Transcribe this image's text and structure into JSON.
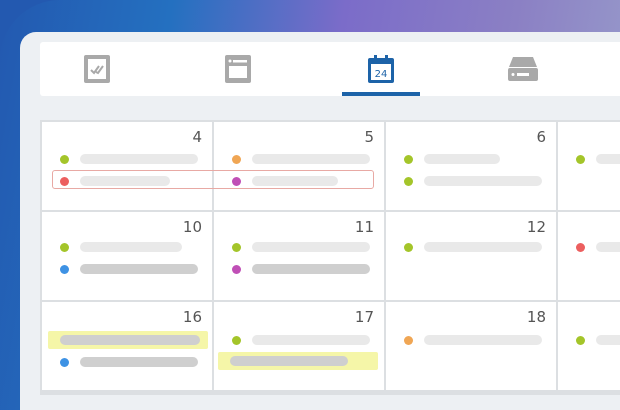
{
  "tabs": [
    {
      "icon": "checklist-icon",
      "active": false
    },
    {
      "icon": "form-icon",
      "active": false
    },
    {
      "icon": "calendar-icon",
      "label": "24",
      "active": true
    },
    {
      "icon": "drive-icon",
      "active": false
    }
  ],
  "colors": {
    "accent": "#1d63a8",
    "green": "#a4c52a",
    "red": "#ec5f5f",
    "orange": "#f0a654",
    "purple": "#c04fb6",
    "blue": "#3e92e4",
    "highlight": "#f5f6a8"
  },
  "calendar": {
    "days": [
      "4",
      "5",
      "6",
      "10",
      "11",
      "12",
      "16",
      "17",
      "18"
    ]
  }
}
